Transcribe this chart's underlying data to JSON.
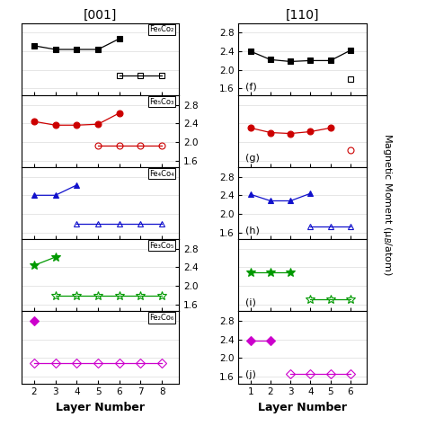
{
  "left_title": "[001]",
  "right_title": "[110]",
  "ylabel": "Magnetic Moment (μ_B/atom)",
  "xlabel": "Layer Number",
  "panel_labels_right": [
    "(f)",
    "(g)",
    "(h)",
    "(i)",
    "(j)"
  ],
  "legends": [
    "Fe₆Co₂",
    "Fe₅Co₃",
    "Fe₄Co₄",
    "Fe₃Co₅",
    "Fe₂Co₆"
  ],
  "yticks": [
    1.6,
    2.0,
    2.4,
    2.8
  ],
  "ylim": [
    1.45,
    3.0
  ],
  "left_xlim": [
    1.4,
    8.8
  ],
  "right_xlim": [
    0.4,
    6.8
  ],
  "left_xticks": [
    2,
    3,
    4,
    5,
    6,
    7,
    8
  ],
  "right_xticks": [
    1,
    2,
    3,
    4,
    5,
    6
  ],
  "left_ytick_panels": [
    1,
    3
  ],
  "right_ytick_panels": [
    0,
    2,
    4
  ],
  "left_data": {
    "Fe6Co2_Fe": {
      "x": [
        2,
        3,
        4,
        5,
        6
      ],
      "y": [
        2.52,
        2.44,
        2.44,
        2.44,
        2.67
      ]
    },
    "Fe6Co2_Co": {
      "x": [
        6,
        7,
        8
      ],
      "y": [
        1.88,
        1.88,
        1.88
      ]
    },
    "Fe5Co3_Fe": {
      "x": [
        2,
        3,
        4,
        5,
        6
      ],
      "y": [
        2.44,
        2.36,
        2.36,
        2.38,
        2.62
      ]
    },
    "Fe5Co3_Co": {
      "x": [
        5,
        6,
        7,
        8
      ],
      "y": [
        1.92,
        1.92,
        1.92,
        1.92
      ]
    },
    "Fe4Co4_Fe": {
      "x": [
        2,
        3,
        4
      ],
      "y": [
        2.4,
        2.4,
        2.62
      ]
    },
    "Fe4Co4_Co": {
      "x": [
        4,
        5,
        6,
        7,
        8
      ],
      "y": [
        1.78,
        1.78,
        1.78,
        1.78,
        1.78
      ]
    },
    "Fe3Co5_Fe": {
      "x": [
        2,
        3
      ],
      "y": [
        2.44,
        2.62
      ]
    },
    "Fe3Co5_Co": {
      "x": [
        3,
        4,
        5,
        6,
        7,
        8
      ],
      "y": [
        1.78,
        1.78,
        1.78,
        1.78,
        1.78,
        1.78
      ]
    },
    "Fe2Co6_Fe": {
      "x": [
        2
      ],
      "y": [
        2.8
      ]
    },
    "Fe2Co6_Co": {
      "x": [
        2,
        3,
        4,
        5,
        6,
        7,
        8
      ],
      "y": [
        1.88,
        1.88,
        1.88,
        1.88,
        1.88,
        1.88,
        1.88
      ]
    }
  },
  "right_data": {
    "Fe6Co2_Fe": {
      "x": [
        1,
        2,
        3,
        4,
        5,
        6
      ],
      "y": [
        2.4,
        2.22,
        2.18,
        2.2,
        2.2,
        2.42
      ]
    },
    "Fe6Co2_Co": {
      "x": [
        6
      ],
      "y": [
        1.8
      ]
    },
    "Fe5Co3_Fe": {
      "x": [
        1,
        2,
        3,
        4,
        5
      ],
      "y": [
        2.3,
        2.2,
        2.18,
        2.22,
        2.3
      ]
    },
    "Fe5Co3_Co": {
      "x": [
        6
      ],
      "y": [
        1.82
      ]
    },
    "Fe4Co4_Fe": {
      "x": [
        1,
        2,
        3,
        4
      ],
      "y": [
        2.42,
        2.28,
        2.28,
        2.44
      ]
    },
    "Fe4Co4_Co": {
      "x": [
        4,
        5,
        6
      ],
      "y": [
        1.72,
        1.72,
        1.72
      ]
    },
    "Fe3Co5_Fe": {
      "x": [
        1,
        2,
        3
      ],
      "y": [
        2.3,
        2.3,
        2.3
      ]
    },
    "Fe3Co5_Co": {
      "x": [
        4,
        5,
        6
      ],
      "y": [
        1.72,
        1.72,
        1.72
      ]
    },
    "Fe2Co6_Fe": {
      "x": [
        1,
        2
      ],
      "y": [
        2.38,
        2.38
      ]
    },
    "Fe2Co6_Co": {
      "x": [
        3,
        4,
        5,
        6
      ],
      "y": [
        1.65,
        1.65,
        1.65,
        1.65
      ]
    }
  },
  "colors": {
    "Fe6Co2": "#000000",
    "Fe5Co3": "#cc0000",
    "Fe4Co4": "#1111cc",
    "Fe3Co5": "#009900",
    "Fe2Co6": "#cc00cc"
  },
  "markers": {
    "Fe6Co2": "s",
    "Fe5Co3": "o",
    "Fe4Co4": "^",
    "Fe3Co5": "*",
    "Fe2Co6": "D"
  },
  "marker_sizes": {
    "Fe6Co2": 5,
    "Fe5Co3": 5,
    "Fe4Co4": 5,
    "Fe3Co5": 7,
    "Fe2Co6": 5
  }
}
